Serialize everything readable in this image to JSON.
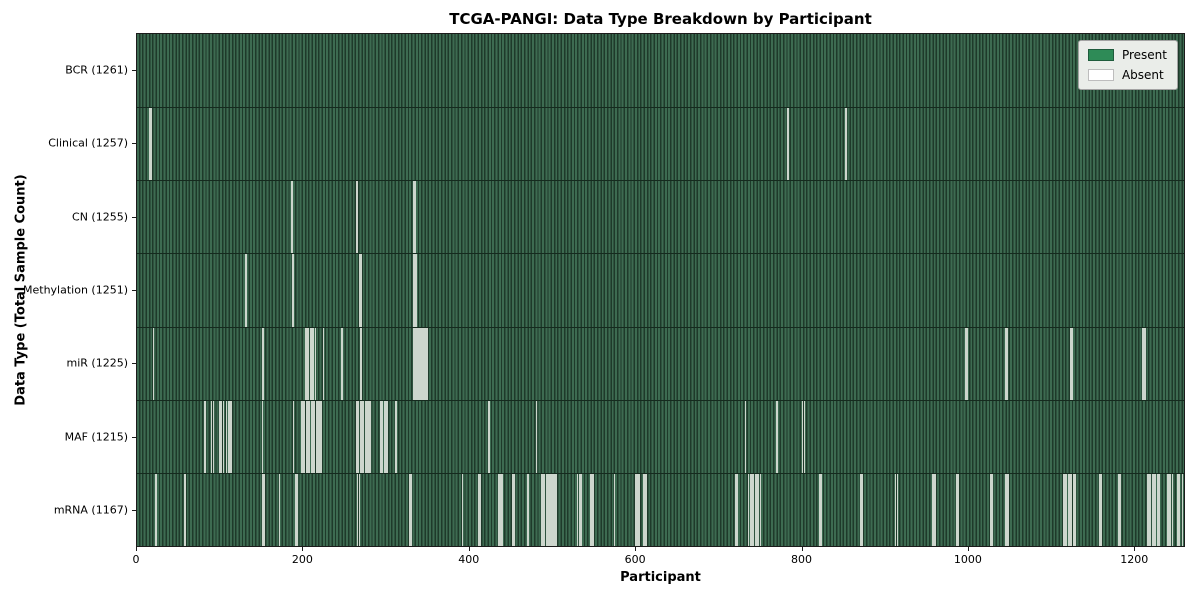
{
  "chart_data": {
    "type": "heatmap",
    "title": "TCGA-PANGI: Data Type Breakdown by Participant",
    "xlabel": "Participant",
    "ylabel": "Data Type (Total Sample Count)",
    "xlim": [
      0,
      1261
    ],
    "x_ticks": [
      0,
      200,
      400,
      600,
      800,
      1000,
      1200
    ],
    "total_participants": 1261,
    "grid": false,
    "legend_position": "upper right",
    "legend": [
      {
        "label": "Present",
        "color": "#2e8b57"
      },
      {
        "label": "Absent",
        "color": "#ffffff"
      }
    ],
    "colors": {
      "present_fill": "#2e8b57",
      "present_rendered_dark": "#2c523d",
      "bar_edge": "#1e3a2a",
      "absent_line": "#cdd6cd"
    },
    "rows": [
      {
        "data_type": "BCR",
        "label": "BCR (1261)",
        "present_count": 1261,
        "absent_participants": []
      },
      {
        "data_type": "Clinical",
        "label": "Clinical (1257)",
        "present_count": 1257,
        "absent_participants": [
          15,
          16,
          783,
          853
        ]
      },
      {
        "data_type": "CN",
        "label": "CN (1255)",
        "present_count": 1255,
        "absent_participants": [
          185,
          186,
          264,
          265,
          333,
          334
        ]
      },
      {
        "data_type": "Methylation",
        "label": "Methylation (1251)",
        "present_count": 1251,
        "absent_participants": [
          130,
          131,
          187,
          188,
          267,
          268,
          269,
          333,
          334,
          335
        ]
      },
      {
        "data_type": "miR",
        "label": "miR (1225)",
        "present_count": 1225,
        "absent_participants": [
          19,
          150,
          151,
          202,
          204,
          206,
          208,
          210,
          212,
          214,
          224,
          246,
          269,
          333,
          335,
          337,
          339,
          341,
          343,
          345,
          347,
          349,
          997,
          998,
          999,
          1045,
          1046,
          1047,
          1124,
          1125,
          1126,
          1210,
          1211,
          1212,
          1213,
          1214
        ]
      },
      {
        "data_type": "MAF",
        "label": "MAF (1215)",
        "present_count": 1215,
        "absent_participants": [
          81,
          89,
          91,
          99,
          101,
          103,
          107,
          109,
          111,
          113,
          150,
          188,
          197,
          199,
          201,
          203,
          205,
          207,
          209,
          211,
          213,
          215,
          217,
          219,
          221,
          264,
          266,
          268,
          270,
          272,
          274,
          276,
          278,
          280,
          293,
          295,
          297,
          299,
          301,
          311,
          423,
          480,
          732,
          770,
          801,
          803
        ]
      },
      {
        "data_type": "mRNA",
        "label": "mRNA (1167)",
        "present_count": 1167,
        "absent_participants": [
          22,
          57,
          150,
          152,
          171,
          190,
          192,
          265,
          267,
          328,
          330,
          391,
          411,
          413,
          435,
          437,
          439,
          452,
          454,
          470,
          486,
          488,
          490,
          492,
          494,
          496,
          498,
          500,
          502,
          504,
          530,
          532,
          534,
          545,
          547,
          549,
          574,
          600,
          602,
          604,
          610,
          612,
          720,
          722,
          736,
          738,
          740,
          742,
          744,
          746,
          748,
          750,
          821,
          823,
          871,
          873,
          913,
          915,
          957,
          959,
          961,
          986,
          988,
          1027,
          1029,
          1046,
          1048,
          1115,
          1117,
          1119,
          1121,
          1123,
          1125,
          1127,
          1129,
          1159,
          1161,
          1181,
          1183,
          1216,
          1218,
          1220,
          1222,
          1224,
          1226,
          1228,
          1230,
          1240,
          1242,
          1244,
          1246,
          1253,
          1255,
          1258
        ]
      }
    ]
  }
}
